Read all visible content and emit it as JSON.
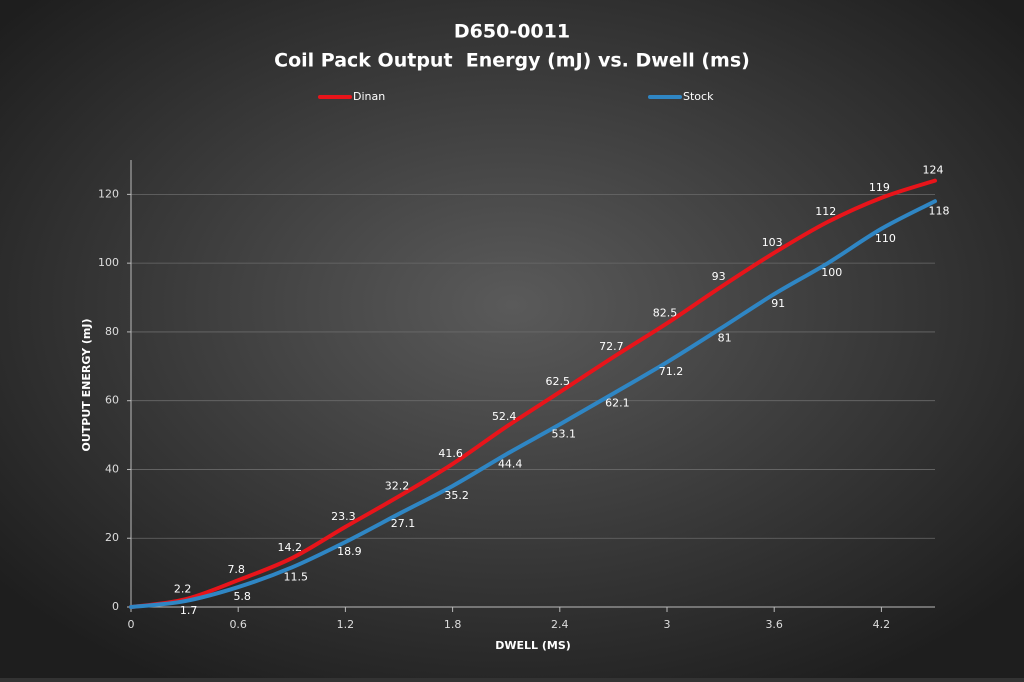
{
  "chart_data": {
    "type": "line",
    "title": "D650-0011",
    "subtitle": "Coil Pack Output  Energy (mJ) vs. Dwell (ms)",
    "x_label": "DWELL (MS)",
    "y_label": "OUTPUT ENERGY (mJ)",
    "x": [
      0,
      0.3,
      0.6,
      0.9,
      1.2,
      1.5,
      1.8,
      2.1,
      2.4,
      2.7,
      3,
      3.3,
      3.6,
      3.9,
      4.2,
      4.5
    ],
    "series": [
      {
        "name": "Dinan",
        "color": "#e8141a",
        "values": [
          0,
          2.2,
          7.8,
          14.2,
          23.3,
          32.2,
          41.6,
          52.4,
          62.5,
          72.7,
          82.5,
          93,
          103,
          112,
          119,
          124
        ]
      },
      {
        "name": "Stock",
        "color": "#2f86c4",
        "values": [
          0,
          1.7,
          5.8,
          11.5,
          18.9,
          27.1,
          35.2,
          44.4,
          53.1,
          62.1,
          71.2,
          81,
          91,
          100,
          110,
          118
        ]
      }
    ],
    "xlim": [
      0,
      4.5
    ],
    "xticks": [
      0,
      0.6,
      1.2,
      1.8,
      2.4,
      3,
      3.6,
      4.2
    ],
    "ylim": [
      0,
      130
    ],
    "yticks": [
      0,
      20,
      40,
      60,
      80,
      100,
      120
    ],
    "grid": true,
    "legend": "top"
  }
}
